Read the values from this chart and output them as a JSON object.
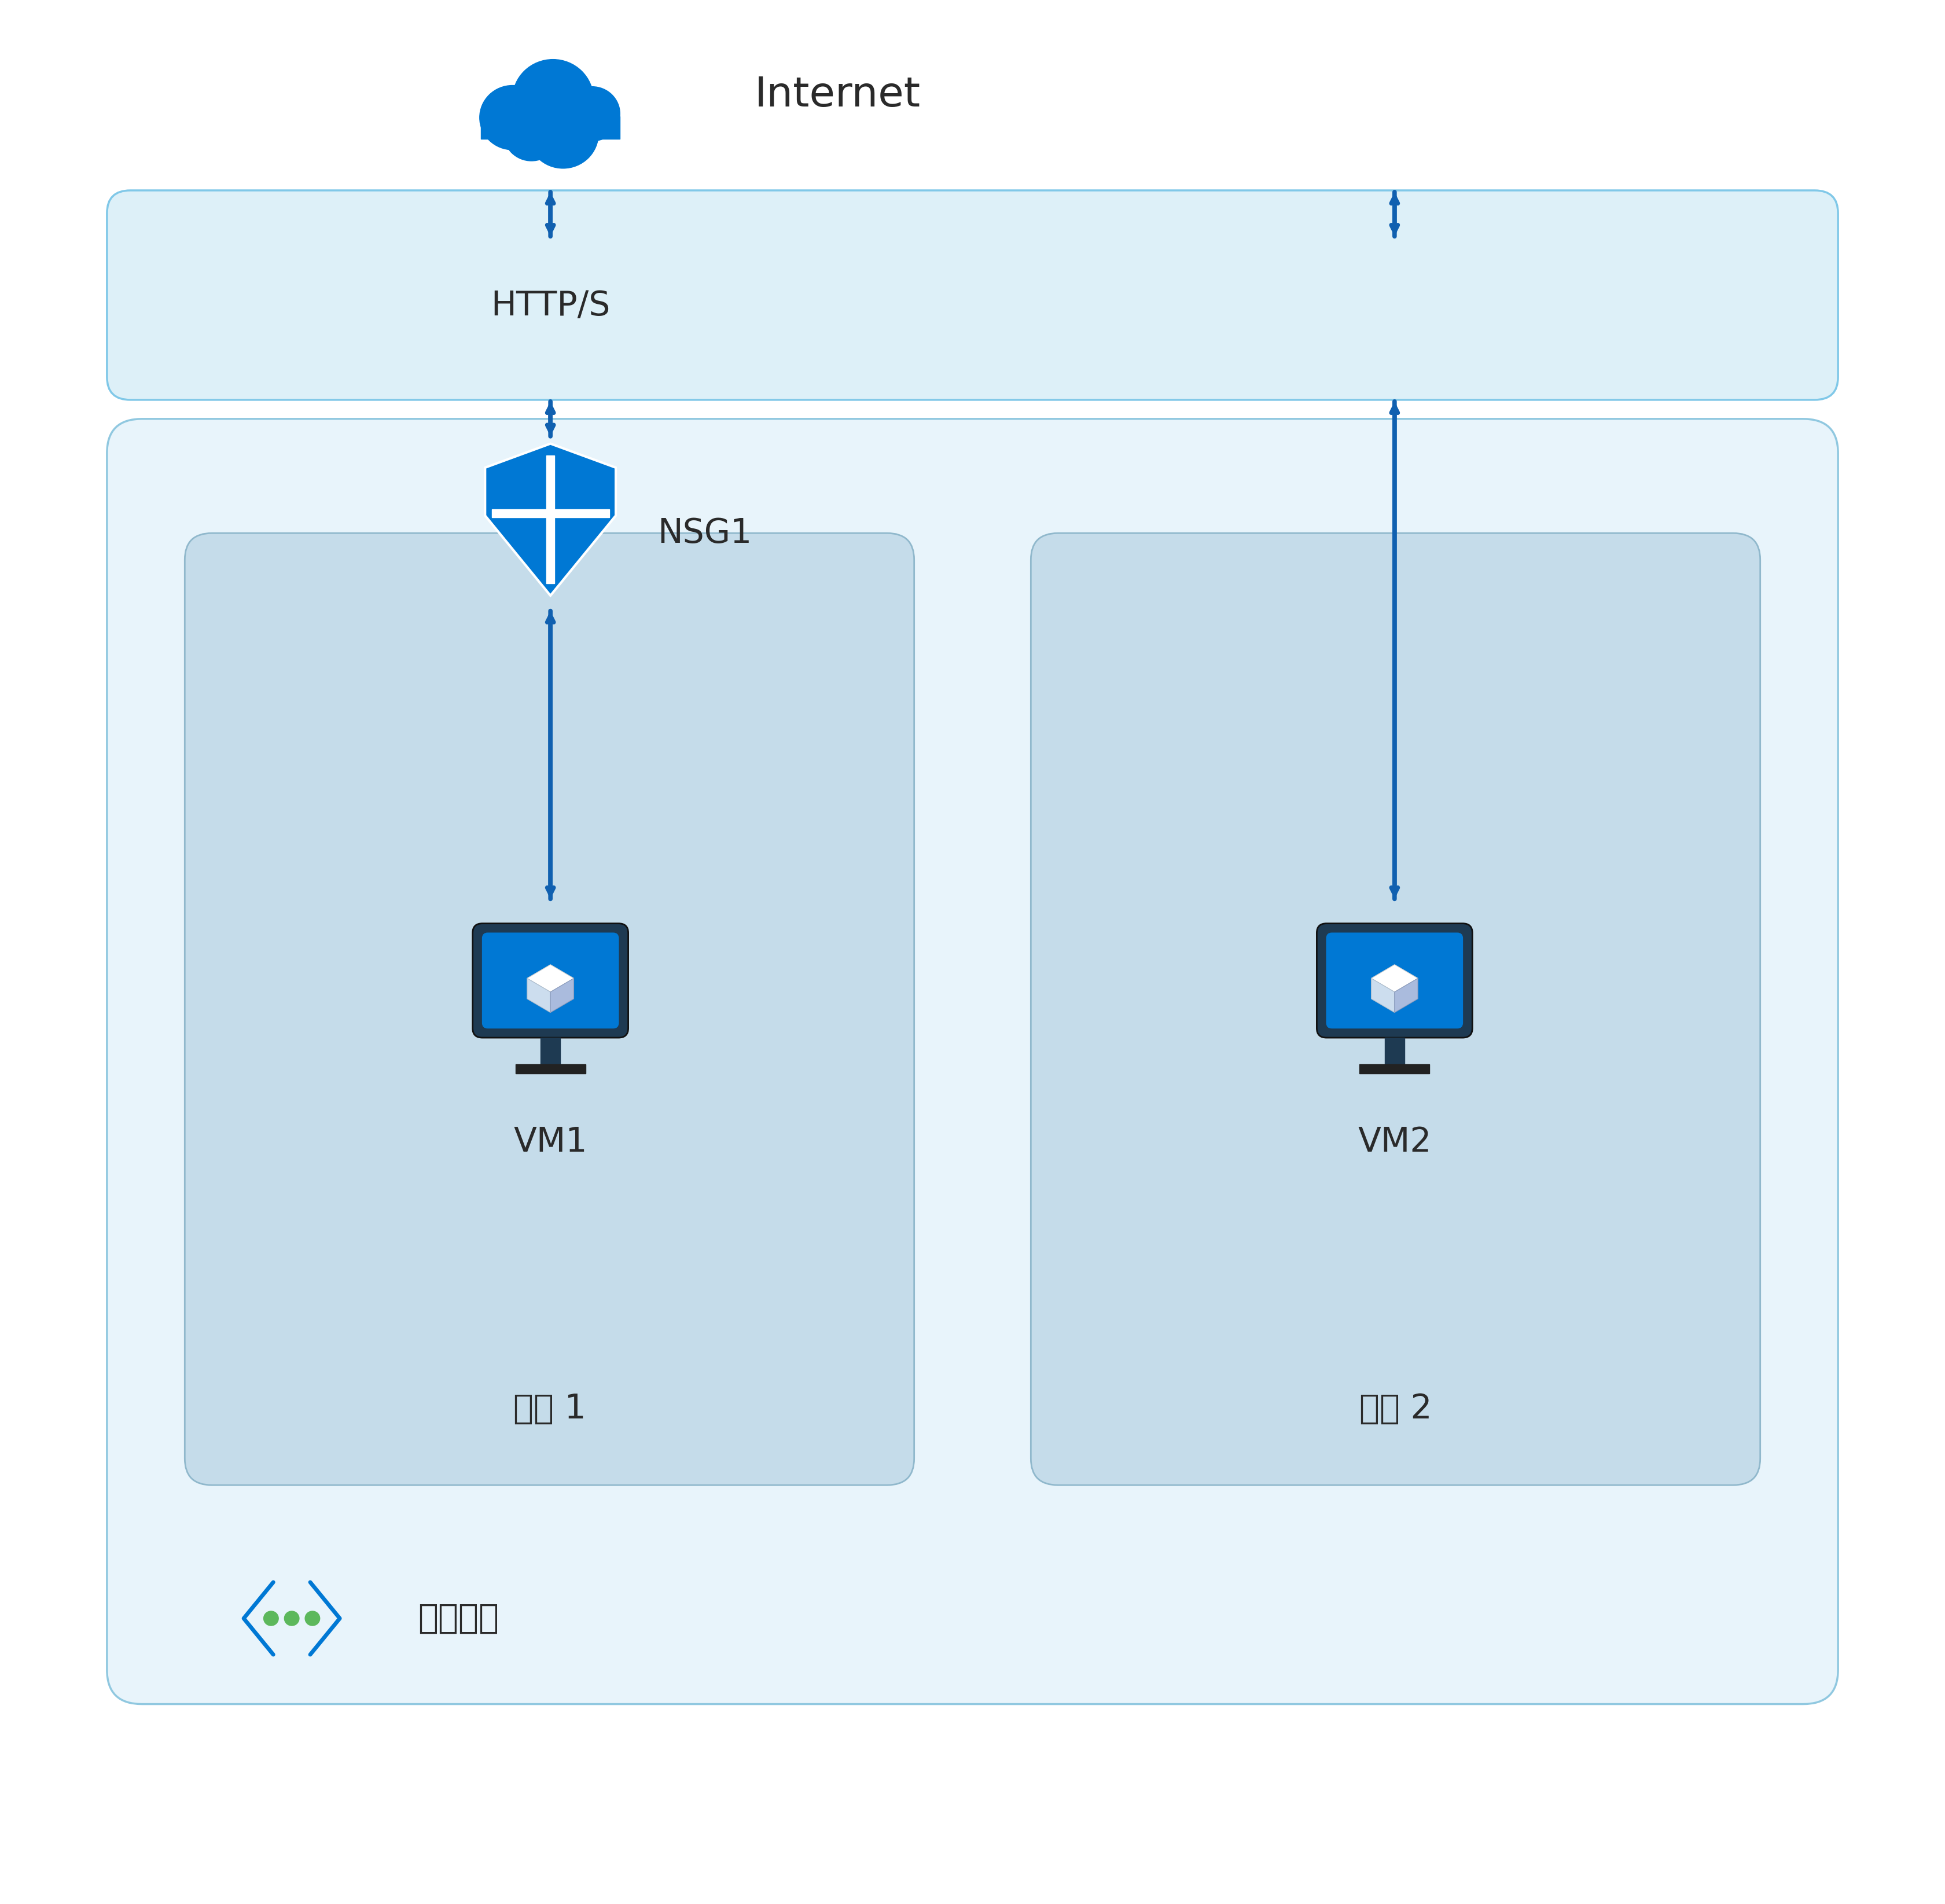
{
  "bg_color": "#ffffff",
  "internet_label": "Internet",
  "https_label": "HTTP/S",
  "nsg_label": "NSG1",
  "vm1_label": "VM1",
  "vm2_label": "VM2",
  "subnet1_label": "子网 1",
  "subnet2_label": "子网 2",
  "vnet_label": "虚拟网络",
  "cloud_color": "#0078d4",
  "arrow_color": "#1060b0",
  "vnet_box_facecolor": "#e8f4fb",
  "vnet_box_edgecolor": "#90c8e0",
  "internet_box_facecolor": "#ddf0f8",
  "internet_box_edgecolor": "#80c8e8",
  "subnet_box_facecolor": "#c5dcea",
  "subnet_box_edgecolor": "#90b8cc",
  "shield_color": "#0078d4",
  "vm_body_color": "#1e3a52",
  "vm_screen_color": "#0078d4",
  "vnet_icon_color": "#0078d4",
  "vnet_dot_color": "#5cb85c",
  "text_color": "#2a2a2a",
  "label_fontsize": 42,
  "title_fontsize": 52,
  "sublabel_fontsize": 42
}
